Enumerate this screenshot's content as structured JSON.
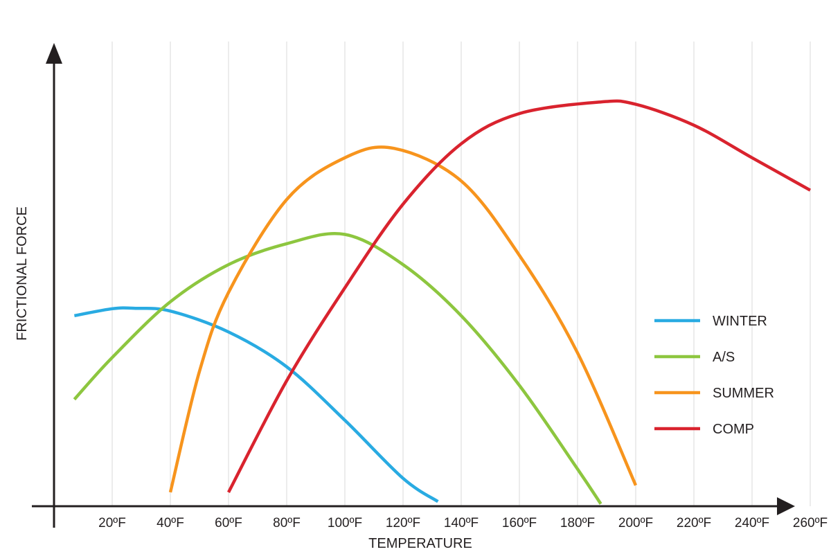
{
  "chart_data": {
    "type": "line",
    "title": "",
    "xlabel": "TEMPERATURE",
    "ylabel": "FRICTIONAL FORCE",
    "xlim": [
      0,
      260
    ],
    "ylim": [
      0,
      100
    ],
    "x_tick_values": [
      20,
      40,
      60,
      80,
      100,
      120,
      140,
      160,
      180,
      200,
      220,
      240,
      260
    ],
    "x_tick_labels": [
      "20ºF",
      "40ºF",
      "60ºF",
      "80ºF",
      "100ºF",
      "120ºF",
      "140ºF",
      "160ºF",
      "180ºF",
      "200ºF",
      "220ºF",
      "240ºF",
      "260ºF"
    ],
    "grid": "vertical",
    "legend_position": "right",
    "series": [
      {
        "name": "WINTER",
        "color": "#29abe2",
        "x": [
          7,
          20,
          28,
          40,
          60,
          80,
          100,
          120,
          132
        ],
        "y": [
          41,
          42.5,
          42.6,
          42,
          37.5,
          30,
          18.5,
          6,
          1
        ]
      },
      {
        "name": "A/S",
        "color": "#8dc63f",
        "x": [
          7,
          20,
          40,
          60,
          80,
          100,
          120,
          140,
          160,
          180,
          188
        ],
        "y": [
          23,
          32,
          44,
          52,
          56.5,
          58.5,
          52,
          41,
          26,
          8,
          0.5
        ]
      },
      {
        "name": "SUMMER",
        "color": "#f7941d",
        "x": [
          40,
          50,
          60,
          80,
          100,
          117,
          140,
          160,
          180,
          200
        ],
        "y": [
          3,
          29,
          46,
          66,
          75,
          77,
          70,
          54,
          33,
          4.5
        ]
      },
      {
        "name": "COMP",
        "color": "#d9232e",
        "x": [
          60,
          80,
          100,
          120,
          140,
          160,
          188,
          200,
          220,
          240,
          260
        ],
        "y": [
          3,
          27,
          47,
          65,
          78,
          84.5,
          87,
          86.5,
          82,
          75,
          68
        ]
      }
    ]
  }
}
